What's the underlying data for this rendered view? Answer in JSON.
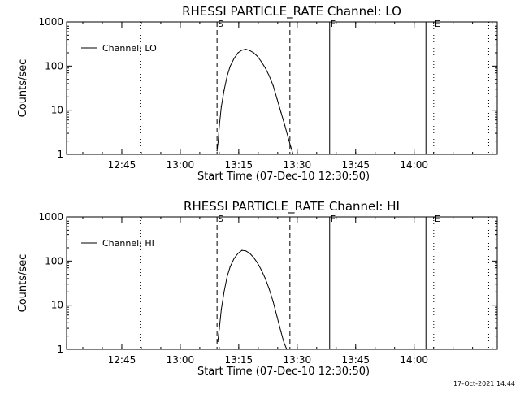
{
  "chart_data": [
    {
      "type": "line",
      "title": "RHESSI PARTICLE_RATE Channel: LO",
      "xlabel": "Start Time (07-Dec-10 12:30:50)",
      "ylabel": "Counts/sec",
      "y_scale": "log",
      "ylim": [
        1,
        1000
      ],
      "xlim_minutes_after_start": [
        0,
        110.5
      ],
      "x_ticks": [
        {
          "label": "12:45",
          "minutes": 14.17
        },
        {
          "label": "13:00",
          "minutes": 29.17
        },
        {
          "label": "13:15",
          "minutes": 44.17
        },
        {
          "label": "13:30",
          "minutes": 59.17
        },
        {
          "label": "13:45",
          "minutes": 74.17
        },
        {
          "label": "14:00",
          "minutes": 89.17
        }
      ],
      "y_ticks": [
        {
          "label": "1",
          "value": 1
        },
        {
          "label": "10",
          "value": 10
        },
        {
          "label": "100",
          "value": 100
        },
        {
          "label": "1000",
          "value": 1000
        }
      ],
      "legend": {
        "label": "Channel: LO",
        "position": "top-left"
      },
      "vertical_markers": [
        {
          "minutes": 18.9,
          "style": "dotted",
          "label": ""
        },
        {
          "minutes": 38.6,
          "style": "dashed",
          "label": "S"
        },
        {
          "minutes": 57.3,
          "style": "dashed",
          "label": ""
        },
        {
          "minutes": 67.5,
          "style": "solid",
          "label": "F"
        },
        {
          "minutes": 92.2,
          "style": "solid",
          "label": ""
        },
        {
          "minutes": 94.2,
          "style": "dotted",
          "label": "E"
        },
        {
          "minutes": 108.3,
          "style": "dotted",
          "label": ""
        }
      ],
      "series": [
        {
          "name": "Channel: LO",
          "x_minutes": [
            38.6,
            38.9,
            39.2,
            39.7,
            40.4,
            41.2,
            42.0,
            43.0,
            44.0,
            45.0,
            46.0,
            47.0,
            48.0,
            49.0,
            50.0,
            51.0,
            52.0,
            53.0,
            54.0,
            55.0,
            56.0,
            56.8,
            57.5,
            58.1
          ],
          "values": [
            1.2,
            2.0,
            4.5,
            12,
            28,
            60,
            100,
            150,
            200,
            230,
            240,
            225,
            200,
            165,
            125,
            90,
            60,
            36,
            18,
            9,
            4.5,
            2.5,
            1.5,
            1.0
          ]
        }
      ]
    },
    {
      "type": "line",
      "title": "RHESSI PARTICLE_RATE Channel: HI",
      "xlabel": "Start Time (07-Dec-10 12:30:50)",
      "ylabel": "Counts/sec",
      "y_scale": "log",
      "ylim": [
        1,
        1000
      ],
      "xlim_minutes_after_start": [
        0,
        110.5
      ],
      "x_ticks": [
        {
          "label": "12:45",
          "minutes": 14.17
        },
        {
          "label": "13:00",
          "minutes": 29.17
        },
        {
          "label": "13:15",
          "minutes": 44.17
        },
        {
          "label": "13:30",
          "minutes": 59.17
        },
        {
          "label": "13:45",
          "minutes": 74.17
        },
        {
          "label": "14:00",
          "minutes": 89.17
        }
      ],
      "y_ticks": [
        {
          "label": "1",
          "value": 1
        },
        {
          "label": "10",
          "value": 10
        },
        {
          "label": "100",
          "value": 100
        },
        {
          "label": "1000",
          "value": 1000
        }
      ],
      "legend": {
        "label": "Channel: HI",
        "position": "top-left"
      },
      "vertical_markers": [
        {
          "minutes": 18.9,
          "style": "dotted",
          "label": ""
        },
        {
          "minutes": 38.6,
          "style": "dashed",
          "label": "S"
        },
        {
          "minutes": 57.3,
          "style": "dashed",
          "label": ""
        },
        {
          "minutes": 67.5,
          "style": "solid",
          "label": "F"
        },
        {
          "minutes": 92.2,
          "style": "solid",
          "label": ""
        },
        {
          "minutes": 94.2,
          "style": "dotted",
          "label": "E"
        },
        {
          "minutes": 108.3,
          "style": "dotted",
          "label": ""
        }
      ],
      "series": [
        {
          "name": "Channel: HI",
          "x_minutes": [
            38.8,
            39.2,
            39.7,
            40.4,
            41.2,
            42.0,
            43.0,
            44.0,
            45.0,
            46.0,
            47.0,
            48.0,
            49.0,
            50.0,
            51.0,
            52.0,
            53.0,
            54.0,
            55.0,
            55.8,
            56.5
          ],
          "values": [
            1.5,
            3.0,
            8.0,
            20,
            45,
            75,
            115,
            150,
            175,
            170,
            150,
            120,
            90,
            62,
            40,
            23,
            12,
            5.5,
            2.5,
            1.4,
            1.0
          ]
        }
      ]
    }
  ],
  "footer": {
    "timestamp": "17-Oct-2021 14:44"
  }
}
